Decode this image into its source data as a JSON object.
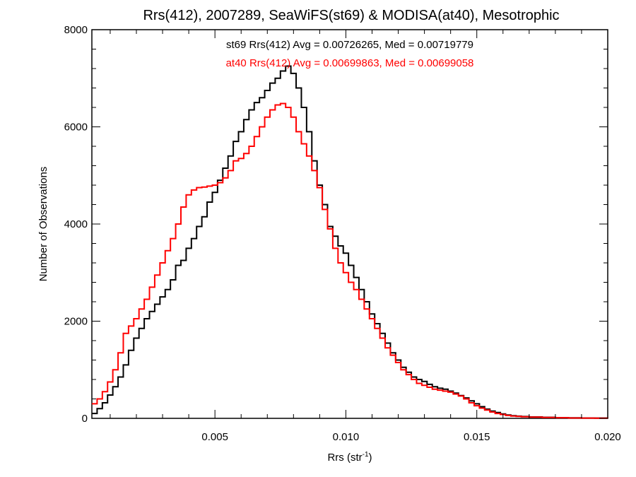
{
  "chart_data": {
    "type": "line",
    "step": true,
    "title": "Rrs(412), 2007289, SeaWiFS(st69) & MODISA(at40), Mesotrophic",
    "xlabel_base": "Rrs (str",
    "xlabel_exp": "-1",
    "xlabel_close": ")",
    "ylabel": "Number of Observations",
    "xlim": [
      0.0003,
      0.02
    ],
    "ylim": [
      0,
      8000
    ],
    "xticks": [
      {
        "value": 0.005,
        "label": "0.005"
      },
      {
        "value": 0.01,
        "label": "0.010"
      },
      {
        "value": 0.015,
        "label": "0.015"
      },
      {
        "value": 0.02,
        "label": "0.020"
      }
    ],
    "yticks": [
      {
        "value": 0,
        "label": "0"
      },
      {
        "value": 2000,
        "label": "2000"
      },
      {
        "value": 4000,
        "label": "4000"
      },
      {
        "value": 6000,
        "label": "6000"
      },
      {
        "value": 8000,
        "label": "8000"
      }
    ],
    "annotations": [
      {
        "text": "st69 Rrs(412) Avg = 0.00726265, Med = 0.00719779",
        "color": "#000000"
      },
      {
        "text": "at40 Rrs(412) Avg = 0.00699863, Med = 0.00699058",
        "color": "#ff0000"
      }
    ],
    "series": [
      {
        "name": "st69",
        "color": "#000000",
        "points": [
          [
            0.0003,
            100
          ],
          [
            0.0005,
            200
          ],
          [
            0.0007,
            320
          ],
          [
            0.0009,
            480
          ],
          [
            0.0011,
            650
          ],
          [
            0.0013,
            850
          ],
          [
            0.0015,
            1100
          ],
          [
            0.0017,
            1400
          ],
          [
            0.0019,
            1650
          ],
          [
            0.0021,
            1850
          ],
          [
            0.0023,
            2050
          ],
          [
            0.0025,
            2200
          ],
          [
            0.0027,
            2350
          ],
          [
            0.0029,
            2500
          ],
          [
            0.0031,
            2650
          ],
          [
            0.0033,
            2850
          ],
          [
            0.0035,
            3150
          ],
          [
            0.0037,
            3250
          ],
          [
            0.0039,
            3500
          ],
          [
            0.0041,
            3700
          ],
          [
            0.0043,
            3950
          ],
          [
            0.0045,
            4150
          ],
          [
            0.0047,
            4450
          ],
          [
            0.0049,
            4650
          ],
          [
            0.0051,
            4900
          ],
          [
            0.0053,
            5150
          ],
          [
            0.0055,
            5400
          ],
          [
            0.0057,
            5700
          ],
          [
            0.0059,
            5900
          ],
          [
            0.0061,
            6150
          ],
          [
            0.0063,
            6350
          ],
          [
            0.0065,
            6500
          ],
          [
            0.0067,
            6600
          ],
          [
            0.0069,
            6750
          ],
          [
            0.0071,
            6900
          ],
          [
            0.0073,
            7000
          ],
          [
            0.0075,
            7150
          ],
          [
            0.0077,
            7250
          ],
          [
            0.0079,
            7100
          ],
          [
            0.0081,
            6800
          ],
          [
            0.0083,
            6400
          ],
          [
            0.0085,
            5900
          ],
          [
            0.0087,
            5300
          ],
          [
            0.0089,
            4800
          ],
          [
            0.0091,
            4400
          ],
          [
            0.0093,
            3950
          ],
          [
            0.0095,
            3750
          ],
          [
            0.0097,
            3550
          ],
          [
            0.0099,
            3400
          ],
          [
            0.0101,
            3150
          ],
          [
            0.0103,
            2900
          ],
          [
            0.0105,
            2650
          ],
          [
            0.0107,
            2400
          ],
          [
            0.0109,
            2150
          ],
          [
            0.0111,
            1950
          ],
          [
            0.0113,
            1750
          ],
          [
            0.0115,
            1550
          ],
          [
            0.0117,
            1350
          ],
          [
            0.0119,
            1200
          ],
          [
            0.0121,
            1050
          ],
          [
            0.0123,
            950
          ],
          [
            0.0125,
            850
          ],
          [
            0.0127,
            800
          ],
          [
            0.0129,
            760
          ],
          [
            0.0131,
            700
          ],
          [
            0.0133,
            650
          ],
          [
            0.0135,
            620
          ],
          [
            0.0137,
            600
          ],
          [
            0.0139,
            560
          ],
          [
            0.0141,
            520
          ],
          [
            0.0143,
            470
          ],
          [
            0.0145,
            420
          ],
          [
            0.0147,
            360
          ],
          [
            0.0149,
            300
          ],
          [
            0.0151,
            240
          ],
          [
            0.0153,
            190
          ],
          [
            0.0155,
            150
          ],
          [
            0.0157,
            120
          ],
          [
            0.0159,
            90
          ],
          [
            0.0161,
            70
          ],
          [
            0.0163,
            55
          ],
          [
            0.0165,
            45
          ],
          [
            0.0167,
            38
          ],
          [
            0.017,
            30
          ],
          [
            0.0175,
            22
          ],
          [
            0.018,
            15
          ],
          [
            0.0185,
            10
          ],
          [
            0.019,
            7
          ],
          [
            0.0195,
            5
          ],
          [
            0.02,
            3
          ]
        ]
      },
      {
        "name": "at40",
        "color": "#ff0000",
        "points": [
          [
            0.0003,
            300
          ],
          [
            0.0005,
            400
          ],
          [
            0.0007,
            550
          ],
          [
            0.0009,
            750
          ],
          [
            0.0011,
            1000
          ],
          [
            0.0013,
            1350
          ],
          [
            0.0015,
            1750
          ],
          [
            0.0017,
            1900
          ],
          [
            0.0019,
            2050
          ],
          [
            0.0021,
            2250
          ],
          [
            0.0023,
            2450
          ],
          [
            0.0025,
            2700
          ],
          [
            0.0027,
            2950
          ],
          [
            0.0029,
            3200
          ],
          [
            0.0031,
            3450
          ],
          [
            0.0033,
            3700
          ],
          [
            0.0035,
            4000
          ],
          [
            0.0037,
            4350
          ],
          [
            0.0039,
            4600
          ],
          [
            0.0041,
            4700
          ],
          [
            0.0043,
            4750
          ],
          [
            0.0045,
            4760
          ],
          [
            0.0047,
            4780
          ],
          [
            0.0049,
            4800
          ],
          [
            0.0051,
            4850
          ],
          [
            0.0053,
            4950
          ],
          [
            0.0055,
            5100
          ],
          [
            0.0057,
            5300
          ],
          [
            0.0059,
            5350
          ],
          [
            0.0061,
            5450
          ],
          [
            0.0063,
            5600
          ],
          [
            0.0065,
            5800
          ],
          [
            0.0067,
            6000
          ],
          [
            0.0069,
            6200
          ],
          [
            0.0071,
            6350
          ],
          [
            0.0073,
            6450
          ],
          [
            0.0075,
            6480
          ],
          [
            0.0077,
            6400
          ],
          [
            0.0079,
            6200
          ],
          [
            0.0081,
            5900
          ],
          [
            0.0083,
            5650
          ],
          [
            0.0085,
            5400
          ],
          [
            0.0087,
            5100
          ],
          [
            0.0089,
            4750
          ],
          [
            0.0091,
            4300
          ],
          [
            0.0093,
            3900
          ],
          [
            0.0095,
            3500
          ],
          [
            0.0097,
            3200
          ],
          [
            0.0099,
            3000
          ],
          [
            0.0101,
            2800
          ],
          [
            0.0103,
            2650
          ],
          [
            0.0105,
            2450
          ],
          [
            0.0107,
            2250
          ],
          [
            0.0109,
            2050
          ],
          [
            0.0111,
            1850
          ],
          [
            0.0113,
            1650
          ],
          [
            0.0115,
            1450
          ],
          [
            0.0117,
            1300
          ],
          [
            0.0119,
            1150
          ],
          [
            0.0121,
            1000
          ],
          [
            0.0123,
            900
          ],
          [
            0.0125,
            800
          ],
          [
            0.0127,
            720
          ],
          [
            0.0129,
            680
          ],
          [
            0.0131,
            640
          ],
          [
            0.0133,
            600
          ],
          [
            0.0135,
            580
          ],
          [
            0.0137,
            560
          ],
          [
            0.0139,
            540
          ],
          [
            0.0141,
            500
          ],
          [
            0.0143,
            460
          ],
          [
            0.0145,
            400
          ],
          [
            0.0147,
            320
          ],
          [
            0.0149,
            260
          ],
          [
            0.0151,
            210
          ],
          [
            0.0153,
            170
          ],
          [
            0.0155,
            130
          ],
          [
            0.0157,
            100
          ],
          [
            0.0159,
            80
          ],
          [
            0.0161,
            60
          ],
          [
            0.0163,
            48
          ],
          [
            0.0165,
            40
          ],
          [
            0.0167,
            32
          ],
          [
            0.017,
            26
          ],
          [
            0.0175,
            18
          ],
          [
            0.018,
            12
          ],
          [
            0.0185,
            8
          ],
          [
            0.019,
            6
          ],
          [
            0.0195,
            4
          ],
          [
            0.02,
            2
          ]
        ]
      }
    ]
  }
}
